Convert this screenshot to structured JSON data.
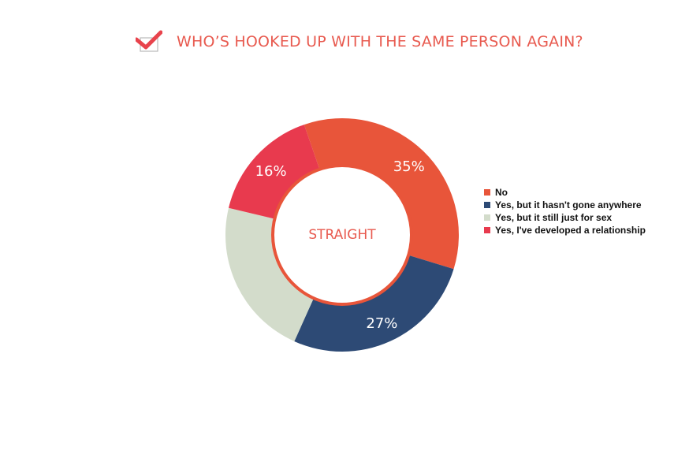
{
  "chart_data": {
    "type": "donut",
    "title": "WHO’S HOOKED UP WITH THE SAME PERSON AGAIN?",
    "center_label": "STRAIGHT",
    "categories": [
      "No",
      "Yes, but it hasn't gone anywhere",
      "Yes, but it still just for sex",
      "Yes, I've developed a relationship"
    ],
    "values": [
      35,
      27,
      22,
      16
    ],
    "data_labels": [
      "35%",
      "27%",
      "",
      "16%"
    ],
    "colors": [
      "#e8553a",
      "#2d4a75",
      "#d3dccb",
      "#e83a4e"
    ],
    "legend_position": "right"
  },
  "colors": {
    "accent": "#e85a4f",
    "center_ring": "#e8553a"
  }
}
